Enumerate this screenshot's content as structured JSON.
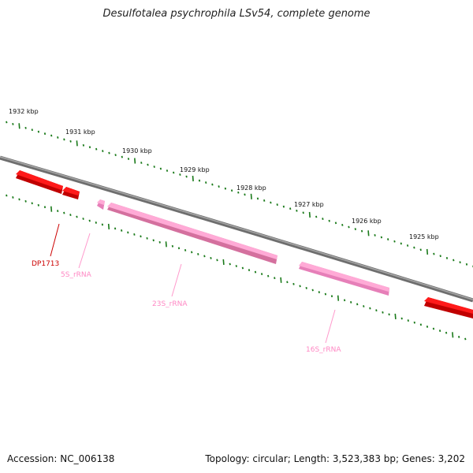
{
  "title": "Desulfotalea psychrophila LSv54, complete genome",
  "kbp_labels": [
    "1932 kbp",
    "1931 kbp",
    "1930 kbp",
    "1929 kbp",
    "1928 kbp",
    "1927 kbp",
    "1926 kbp",
    "1925 kbp"
  ],
  "features": {
    "dp1713": "DP1713",
    "rrna5s": "5S_rRNA",
    "rrna23s": "23S_rRNA",
    "rrna16s": "16S_rRNA"
  },
  "footer": {
    "accession": "Accession: NC_006138",
    "summary": "Topology: circular; Length: 3,523,383 bp; Genes: 3,202"
  },
  "colors": {
    "gene": "#ff0000",
    "rrna": "#ff99cc",
    "backbone": "#808080",
    "ticks": "#1a7a1a"
  }
}
